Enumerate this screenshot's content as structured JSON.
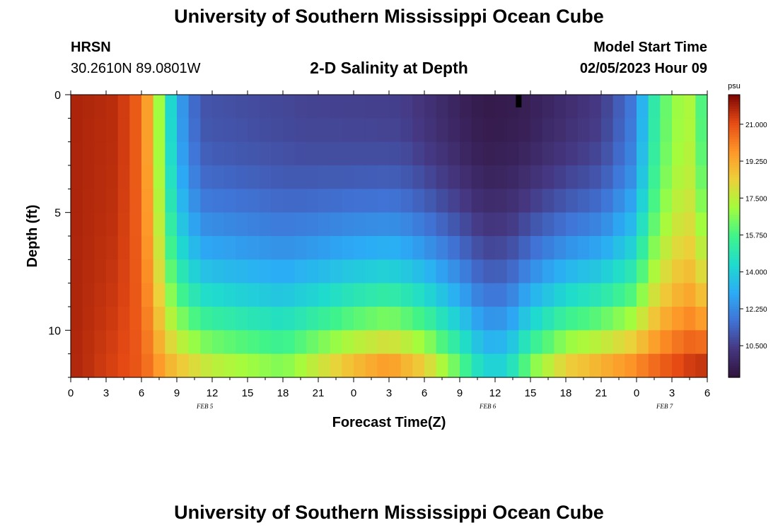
{
  "header": {
    "title": "University of Southern Mississippi Ocean Cube",
    "station": "HRSN",
    "coords": "30.2610N  89.0801W",
    "subtitle": "2-D Salinity at Depth",
    "start_label": "Model Start Time",
    "start_value": "02/05/2023 Hour 09"
  },
  "footer": {
    "title": "University of Southern Mississippi Ocean Cube"
  },
  "chart_data": {
    "type": "heatmap",
    "title": "2-D Salinity at Depth",
    "xlabel": "Forecast Time(Z)",
    "ylabel": "Depth (ft)",
    "x_range_hours": [
      0,
      54
    ],
    "y_range_ft": [
      0,
      12
    ],
    "x_tick_labels": [
      "0",
      "3",
      "6",
      "9",
      "12",
      "15",
      "18",
      "21",
      "0",
      "3",
      "6",
      "9",
      "12",
      "15",
      "18",
      "21",
      "0",
      "3",
      "6"
    ],
    "date_labels": [
      {
        "text": "FEB 5",
        "hour": 12
      },
      {
        "text": "FEB 6",
        "hour": 36
      },
      {
        "text": "FEB 7",
        "hour": 51
      }
    ],
    "y_ticks": [
      0,
      5,
      10
    ],
    "colorbar": {
      "unit": "psu",
      "min": 9.0,
      "max": 22.4,
      "tick_values": [
        10.5,
        12.25,
        14.0,
        15.75,
        17.5,
        19.25,
        21.0
      ],
      "tick_labels": [
        "10.500",
        "12.250",
        "14.000",
        "15.750",
        "17.500",
        "19.250",
        "21.000"
      ]
    },
    "columns": 54,
    "depth_rows_ft": [
      0,
      1,
      2,
      3,
      4,
      5,
      6,
      7,
      8,
      9,
      10,
      11
    ],
    "salinity_profile_keypoints": {
      "surface_hours": [
        0,
        4,
        6,
        7,
        8,
        9,
        11,
        20,
        28,
        32,
        35,
        38,
        45,
        48,
        49,
        51,
        53,
        54
      ],
      "surface_values": [
        21.8,
        21.6,
        20.5,
        18.5,
        15.5,
        13.0,
        11.0,
        10.6,
        10.5,
        9.8,
        9.3,
        9.4,
        10.4,
        12.0,
        14.5,
        16.8,
        17.3,
        14.5
      ],
      "bottom_hours": [
        0,
        6,
        8,
        12,
        18,
        24,
        27,
        30,
        33,
        35,
        37,
        39,
        42,
        48,
        54
      ],
      "bottom_values": [
        21.8,
        20.8,
        19.5,
        18.0,
        17.0,
        19.5,
        20.3,
        19.0,
        16.5,
        14.5,
        14.5,
        17.0,
        19.0,
        20.5,
        22.0
      ]
    },
    "marker": {
      "hour": 38,
      "depth_ft": 0.3
    }
  }
}
